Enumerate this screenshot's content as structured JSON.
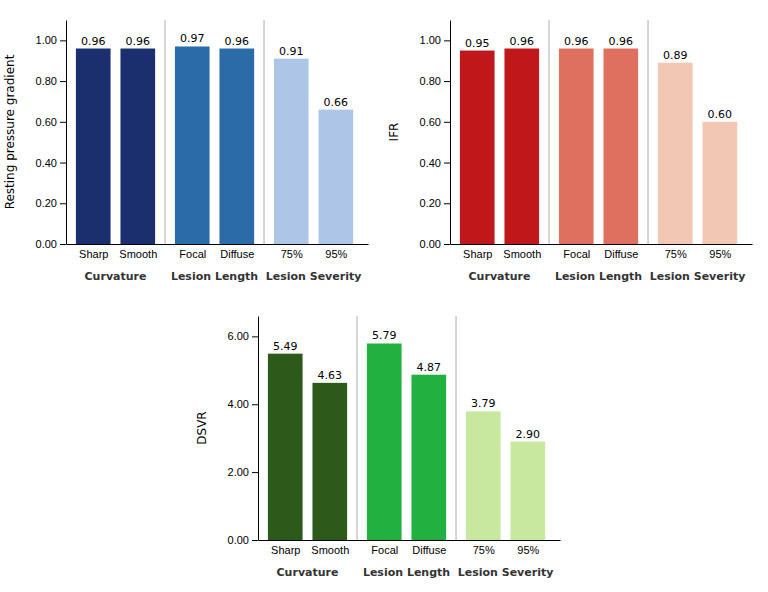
{
  "chart_data": [
    {
      "type": "bar",
      "ylabel": "Resting pressure gradient",
      "categories": [
        "Sharp",
        "Smooth",
        "Focal",
        "Diffuse",
        "75%",
        "95%"
      ],
      "values": [
        0.96,
        0.96,
        0.97,
        0.96,
        0.91,
        0.66
      ],
      "value_labels": [
        "0.96",
        "0.96",
        "0.97",
        "0.96",
        "0.91",
        "0.66"
      ],
      "data_labels": true,
      "colors": [
        "#1b2f6e",
        "#1b2f6e",
        "#2b6ca8",
        "#2b6ca8",
        "#adc6e8",
        "#adc6e8"
      ],
      "ylim": [
        0,
        1.1
      ],
      "yticks": [
        {
          "value": 0.0,
          "label": "0.00"
        },
        {
          "value": 0.2,
          "label": "0.20"
        },
        {
          "value": 0.4,
          "label": "0.40"
        },
        {
          "value": 0.6,
          "label": "0.60"
        },
        {
          "value": 0.8,
          "label": "0.80"
        },
        {
          "value": 1.0,
          "label": "1.00"
        }
      ],
      "grid": false,
      "annotations": [
        "Curvature",
        "Lesion Length",
        "Lesion Severity"
      ]
    },
    {
      "type": "bar",
      "ylabel": "IFR",
      "categories": [
        "Sharp",
        "Smooth",
        "Focal",
        "Diffuse",
        "75%",
        "95%"
      ],
      "values": [
        0.95,
        0.96,
        0.96,
        0.96,
        0.89,
        0.6
      ],
      "value_labels": [
        "0.95",
        "0.96",
        "0.96",
        "0.96",
        "0.89",
        "0.60"
      ],
      "data_labels": true,
      "colors": [
        "#c0181a",
        "#c0181a",
        "#df7060",
        "#df7060",
        "#f2c8b4",
        "#f2c8b4"
      ],
      "ylim": [
        0,
        1.1
      ],
      "yticks": [
        {
          "value": 0.0,
          "label": "0.00"
        },
        {
          "value": 0.2,
          "label": "0.20"
        },
        {
          "value": 0.4,
          "label": "0.40"
        },
        {
          "value": 0.6,
          "label": "0.60"
        },
        {
          "value": 0.8,
          "label": "0.80"
        },
        {
          "value": 1.0,
          "label": "1.00"
        }
      ],
      "grid": false,
      "annotations": [
        "Curvature",
        "Lesion Length",
        "Lesion Severity"
      ]
    },
    {
      "type": "bar",
      "ylabel": "DSVR",
      "categories": [
        "Sharp",
        "Smooth",
        "Focal",
        "Diffuse",
        "75%",
        "95%"
      ],
      "values": [
        5.49,
        4.63,
        5.79,
        4.87,
        3.79,
        2.9
      ],
      "value_labels": [
        "5.49",
        "4.63",
        "5.79",
        "4.87",
        "3.79",
        "2.90"
      ],
      "data_labels": true,
      "colors": [
        "#2d5a1b",
        "#2d5a1b",
        "#22b040",
        "#22b040",
        "#c8e8a0",
        "#c8e8a0"
      ],
      "ylim": [
        0,
        6.6
      ],
      "yticks": [
        {
          "value": 0.0,
          "label": "0.00"
        },
        {
          "value": 2.0,
          "label": "2.00"
        },
        {
          "value": 4.0,
          "label": "4.00"
        },
        {
          "value": 6.0,
          "label": "6.00"
        }
      ],
      "grid": false,
      "annotations": [
        "Curvature",
        "Lesion Length",
        "Lesion Severity"
      ]
    }
  ]
}
